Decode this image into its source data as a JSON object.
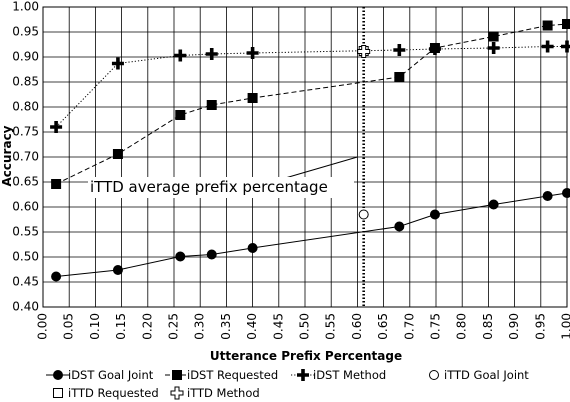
{
  "chart_data": {
    "type": "line",
    "title": "",
    "xlabel": "Utterance Prefix Percentage",
    "ylabel": "Accuracy",
    "xlim": [
      0.0,
      1.0
    ],
    "ylim": [
      0.4,
      1.0
    ],
    "x_ticks": [
      0.0,
      0.05,
      0.1,
      0.15,
      0.2,
      0.25,
      0.3,
      0.35,
      0.4,
      0.45,
      0.5,
      0.55,
      0.6,
      0.65,
      0.7,
      0.75,
      0.8,
      0.85,
      0.9,
      0.95,
      1.0
    ],
    "x_tick_labels": [
      "0.00",
      "0.05",
      "0.10",
      "0.15",
      "0.20",
      "0.25",
      "0.30",
      "0.35",
      "0.40",
      "0.45",
      "0.50",
      "0.55",
      "0.60",
      "0.65",
      "0.70",
      "0.75",
      "0.80",
      "0.85",
      "0.90",
      "0.95",
      "1.00"
    ],
    "y_ticks": [
      0.4,
      0.45,
      0.5,
      0.55,
      0.6,
      0.65,
      0.7,
      0.75,
      0.8,
      0.85,
      0.9,
      0.95,
      1.0
    ],
    "y_tick_labels": [
      "0.40",
      "0.45",
      "0.50",
      "0.55",
      "0.60",
      "0.65",
      "0.70",
      "0.75",
      "0.80",
      "0.85",
      "0.90",
      "0.95",
      "1.00"
    ],
    "grid": true,
    "legend_position": "bottom",
    "series": [
      {
        "name": "iDST Goal Joint",
        "marker": "circle-filled",
        "line": "solid",
        "points": [
          [
            0.025,
            0.461
          ],
          [
            0.143,
            0.474
          ],
          [
            0.262,
            0.501
          ],
          [
            0.322,
            0.505
          ],
          [
            0.4,
            0.518
          ],
          [
            0.68,
            0.561
          ],
          [
            0.748,
            0.585
          ],
          [
            0.86,
            0.605
          ],
          [
            0.963,
            0.622
          ],
          [
            1.0,
            0.628
          ]
        ]
      },
      {
        "name": "iDST Requested",
        "marker": "square-filled",
        "line": "dashed",
        "points": [
          [
            0.025,
            0.646
          ],
          [
            0.143,
            0.706
          ],
          [
            0.262,
            0.784
          ],
          [
            0.322,
            0.804
          ],
          [
            0.4,
            0.818
          ],
          [
            0.68,
            0.86
          ],
          [
            0.748,
            0.918
          ],
          [
            0.86,
            0.941
          ],
          [
            0.963,
            0.963
          ],
          [
            1.0,
            0.966
          ]
        ]
      },
      {
        "name": "iDST Method",
        "marker": "plus-filled",
        "line": "dotted",
        "points": [
          [
            0.025,
            0.76
          ],
          [
            0.143,
            0.887
          ],
          [
            0.262,
            0.903
          ],
          [
            0.322,
            0.906
          ],
          [
            0.4,
            0.908
          ],
          [
            0.68,
            0.914
          ],
          [
            0.748,
            0.916
          ],
          [
            0.86,
            0.918
          ],
          [
            0.963,
            0.921
          ],
          [
            1.0,
            0.921
          ]
        ]
      },
      {
        "name": "iTTD Goal Joint",
        "marker": "circle-open",
        "points": [
          [
            0.612,
            0.585
          ]
        ]
      },
      {
        "name": "iTTD Requested",
        "marker": "square-open",
        "points": [
          [
            0.612,
            0.912
          ]
        ]
      },
      {
        "name": "iTTD Method",
        "marker": "plus-open",
        "points": [
          [
            0.612,
            0.911
          ]
        ]
      }
    ],
    "reference_line": {
      "x": 0.612,
      "style": "dotted-vertical"
    },
    "annotation": {
      "text": "iTTD average prefix percentage",
      "arrow_to": [
        0.6,
        0.7
      ]
    }
  }
}
